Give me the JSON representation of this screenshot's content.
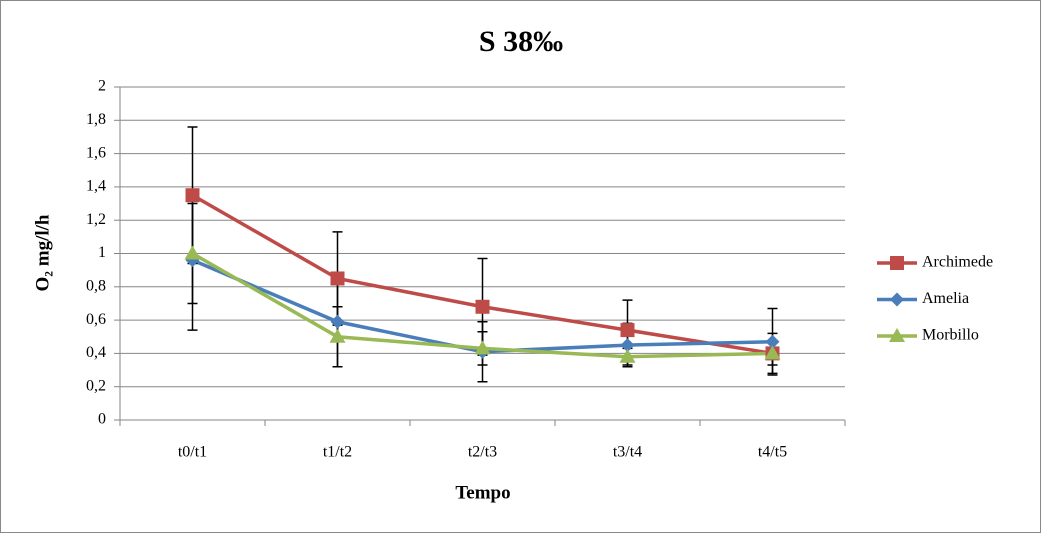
{
  "chart_data": {
    "type": "line",
    "title": "S 38‰",
    "x_label": "Tempo",
    "y_label": "O₂ mg/l/h",
    "categories": [
      "t0/t1",
      "t1/t2",
      "t2/t3",
      "t3/t4",
      "t4/t5"
    ],
    "series": [
      {
        "name": "Archimede",
        "color": "#be4b48",
        "marker": "square",
        "values": [
          1.35,
          0.85,
          0.68,
          0.54,
          0.4
        ],
        "errors": [
          0.41,
          0.28,
          0.29,
          0.18,
          0.12
        ]
      },
      {
        "name": "Amelia",
        "color": "#4a7ebb",
        "marker": "diamond",
        "values": [
          0.96,
          0.59,
          0.41,
          0.45,
          0.47
        ],
        "errors": [
          0.42,
          0.27,
          0.18,
          0.13,
          0.2
        ]
      },
      {
        "name": "Morbillo",
        "color": "#98b954",
        "marker": "triangle",
        "values": [
          1.0,
          0.5,
          0.43,
          0.38,
          0.4
        ],
        "errors": [
          0.3,
          0.18,
          0.1,
          0.05,
          0.07
        ]
      }
    ],
    "ylim": [
      0,
      2
    ],
    "yticks": [
      0,
      {
        "value": 0.2,
        "label": "0,2"
      },
      {
        "value": 0.4,
        "label": "0,4"
      },
      {
        "value": 0.6,
        "label": "0,6"
      },
      {
        "value": 0.8,
        "label": "0,8"
      },
      1,
      {
        "value": 1.2,
        "label": "1,2"
      },
      {
        "value": 1.4,
        "label": "1,4"
      },
      {
        "value": 1.6,
        "label": "1,6"
      },
      {
        "value": 1.8,
        "label": "1,8"
      },
      2
    ],
    "grid": true,
    "legend": "right"
  }
}
